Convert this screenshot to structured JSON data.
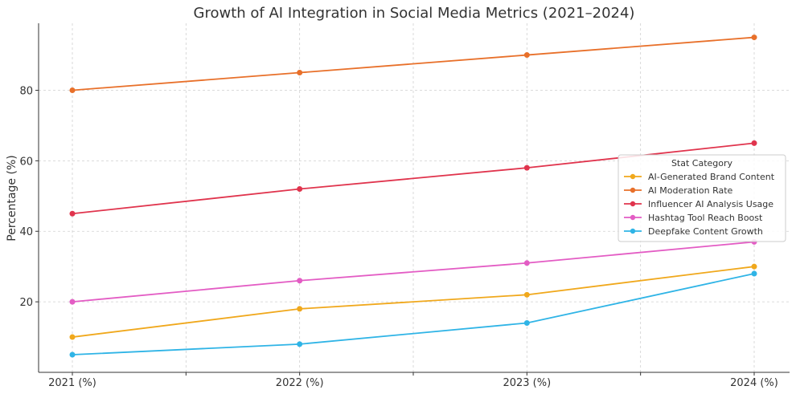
{
  "chart_data": {
    "type": "line",
    "title": "Growth of AI Integration in Social Media Metrics (2021–2024)",
    "xlabel": "",
    "ylabel": "Percentage (%)",
    "categories": [
      "2021 (%)",
      "2022 (%)",
      "2023 (%)",
      "2024 (%)"
    ],
    "ylim": [
      0,
      99
    ],
    "yticks": [
      20,
      40,
      60,
      80
    ],
    "grid": true,
    "legend": {
      "title": "Stat Category",
      "placement": "right"
    },
    "series": [
      {
        "name": "AI-Generated Brand Content",
        "color": "#f0a81c",
        "values": [
          10,
          18,
          22,
          30
        ]
      },
      {
        "name": "AI Moderation Rate",
        "color": "#e8702a",
        "values": [
          80,
          85,
          90,
          95
        ]
      },
      {
        "name": "Influencer AI Analysis Usage",
        "color": "#e0344d",
        "values": [
          45,
          52,
          58,
          65
        ]
      },
      {
        "name": "Hashtag Tool Reach Boost",
        "color": "#e35cc4",
        "values": [
          20,
          26,
          31,
          37
        ]
      },
      {
        "name": "Deepfake Content Growth",
        "color": "#2fb4e6",
        "values": [
          5,
          8,
          14,
          28
        ]
      }
    ]
  }
}
